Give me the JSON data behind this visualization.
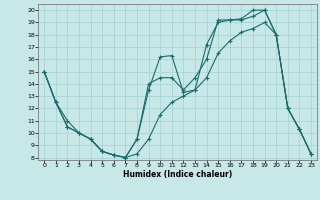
{
  "xlabel": "Humidex (Indice chaleur)",
  "bg_color": "#c8e8e8",
  "grid_color": "#aad4d4",
  "line_color": "#1a6b6b",
  "xlim": [
    0,
    23
  ],
  "ylim": [
    8,
    20
  ],
  "xticks": [
    0,
    1,
    2,
    3,
    4,
    5,
    6,
    7,
    8,
    9,
    10,
    11,
    12,
    13,
    14,
    15,
    16,
    17,
    18,
    19,
    20,
    21,
    22,
    23
  ],
  "yticks": [
    8,
    9,
    10,
    11,
    12,
    13,
    14,
    15,
    16,
    17,
    18,
    19,
    20
  ],
  "line1_x": [
    0,
    1,
    2,
    3,
    4,
    5,
    6,
    7,
    8,
    9,
    10,
    11,
    12,
    13,
    14,
    15,
    16,
    17,
    18,
    19,
    20,
    21,
    22,
    23
  ],
  "line1_y": [
    15.0,
    12.5,
    10.5,
    10.0,
    9.5,
    8.5,
    8.2,
    8.0,
    9.5,
    13.5,
    16.2,
    16.3,
    13.3,
    13.5,
    17.2,
    19.0,
    19.2,
    19.2,
    19.5,
    20.0,
    18.0,
    12.0,
    10.3,
    8.3
  ],
  "line2_x": [
    0,
    1,
    2,
    3,
    4,
    5,
    6,
    7,
    8,
    9,
    10,
    11,
    12,
    13,
    14,
    15,
    16,
    17,
    18,
    19,
    20,
    21,
    22,
    23
  ],
  "line2_y": [
    15.0,
    12.5,
    10.5,
    10.0,
    9.5,
    8.5,
    8.2,
    8.0,
    9.5,
    14.0,
    14.5,
    14.5,
    13.5,
    14.5,
    16.0,
    19.2,
    19.2,
    19.3,
    20.0,
    20.0,
    18.0,
    12.0,
    10.3,
    8.3
  ],
  "line3_x": [
    0,
    1,
    2,
    3,
    4,
    5,
    6,
    7,
    8,
    9,
    10,
    11,
    12,
    13,
    14,
    15,
    16,
    17,
    18,
    19,
    20,
    21,
    22,
    23
  ],
  "line3_y": [
    15.0,
    12.5,
    11.0,
    10.0,
    9.5,
    8.5,
    8.2,
    8.0,
    8.3,
    9.5,
    11.5,
    12.5,
    13.0,
    13.5,
    14.5,
    16.5,
    17.5,
    18.2,
    18.5,
    19.0,
    18.0,
    12.0,
    10.3,
    8.3
  ]
}
